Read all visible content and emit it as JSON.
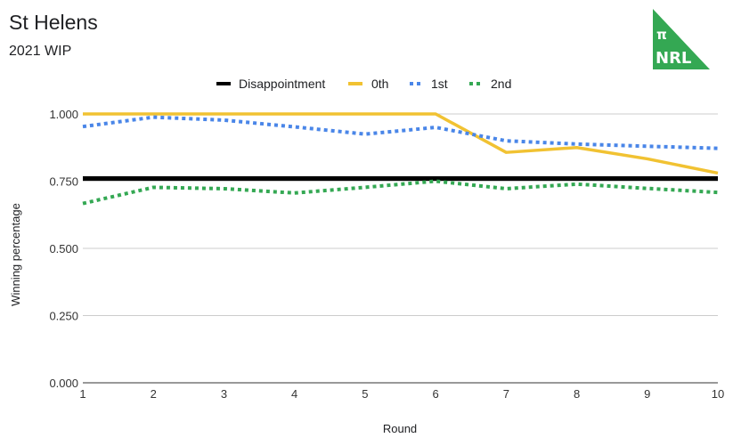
{
  "chart_data": {
    "type": "line",
    "title": "St Helens",
    "subtitle": "2021 WIP",
    "xlabel": "Round",
    "ylabel": "Winning percentage",
    "x": [
      1,
      2,
      3,
      4,
      5,
      6,
      7,
      8,
      9,
      10
    ],
    "xlim": [
      1,
      10
    ],
    "ylim": [
      0,
      1
    ],
    "y_ticks": [
      "0.000",
      "0.250",
      "0.500",
      "0.750",
      "1.000"
    ],
    "x_ticks": [
      "1",
      "2",
      "3",
      "4",
      "5",
      "6",
      "7",
      "8",
      "9",
      "10"
    ],
    "grid": true,
    "legend_position": "top",
    "series": [
      {
        "name": "Disappointment",
        "color": "#000000",
        "style": "solid",
        "values": [
          0.76,
          0.76,
          0.76,
          0.76,
          0.76,
          0.76,
          0.76,
          0.76,
          0.76,
          0.76
        ]
      },
      {
        "name": "0th",
        "color": "#f1c232",
        "style": "solid",
        "values": [
          1.0,
          1.0,
          1.0,
          1.0,
          1.0,
          1.0,
          0.857,
          0.875,
          0.833,
          0.78
        ]
      },
      {
        "name": "1st",
        "color": "#4a86e8",
        "style": "dotted",
        "values": [
          0.953,
          0.988,
          0.977,
          0.952,
          0.925,
          0.95,
          0.9,
          0.888,
          0.88,
          0.872
        ]
      },
      {
        "name": "2nd",
        "color": "#34a853",
        "style": "dotted",
        "values": [
          0.667,
          0.727,
          0.722,
          0.706,
          0.727,
          0.75,
          0.722,
          0.739,
          0.723,
          0.708
        ]
      }
    ]
  },
  "logo": {
    "symbol": "π",
    "text": "NRL",
    "color": "#34a853"
  }
}
